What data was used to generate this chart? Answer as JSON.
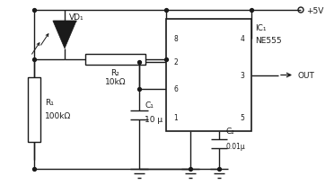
{
  "figsize": [
    3.72,
    2.07
  ],
  "dpi": 100,
  "lc": "#1a1a1a",
  "tc": "#1a1a1a",
  "fs": 6.5,
  "fs_small": 5.5,
  "lw": 1.0,
  "vdd_label": "+5V",
  "out_label": "OUT",
  "ic_label": "IC₁",
  "ic_sublabel": "NE555",
  "vd_label": "VD₁",
  "r2_label": "R₂",
  "r2_val": "10kΩ",
  "r1_label": "R₁",
  "r1_val": "100kΩ",
  "c1_label": "C₁",
  "c1_val": "10 μ",
  "c2_label": "C₂",
  "c2_val": "0.01μ",
  "pin2": "2",
  "pin6": "6",
  "pin8": "8",
  "pin4": "4",
  "pin1": "1",
  "pin5": "5",
  "pin3": "3"
}
